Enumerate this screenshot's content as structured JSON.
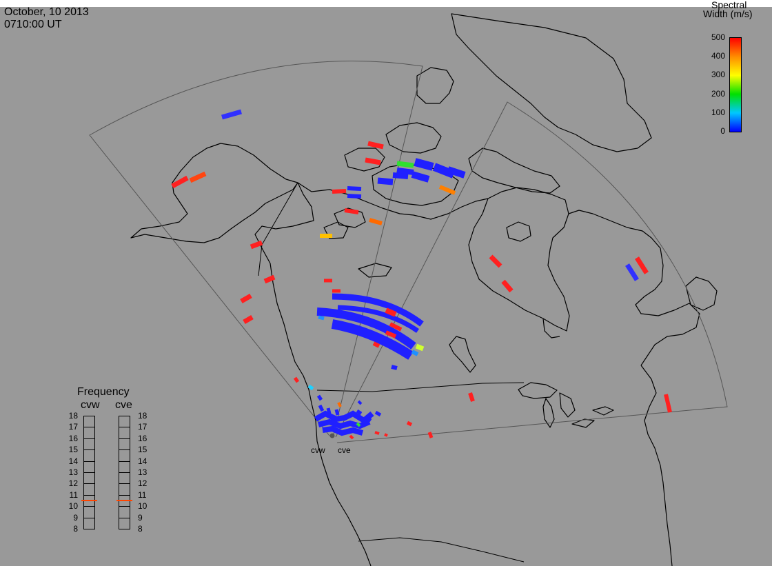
{
  "header": {
    "date": "October, 10 2013",
    "time": "0710:00 UT"
  },
  "colorbar": {
    "title_line1": "Spectral",
    "title_line2": "Width (m/s)",
    "ticks": [
      "500",
      "400",
      "300",
      "200",
      "100",
      "0"
    ],
    "min": 0,
    "max": 500,
    "colors": [
      "#0000ff",
      "#00c8ff",
      "#00e000",
      "#ffff00",
      "#ff8c00",
      "#ff0000"
    ]
  },
  "radars": [
    {
      "label": "cvw",
      "freq_mhz": 10.5
    },
    {
      "label": "cve",
      "freq_mhz": 10.5
    }
  ],
  "frequency_panel": {
    "title": "Frequency",
    "ticks": [
      "18",
      "17",
      "16",
      "15",
      "14",
      "13",
      "12",
      "11",
      "10",
      "9",
      "8"
    ],
    "min": 8,
    "max": 18,
    "indicator_color": "#ff4500"
  },
  "colors": {
    "background": "#999999",
    "land_outline": "#000000",
    "fov_outline": "#555555"
  }
}
